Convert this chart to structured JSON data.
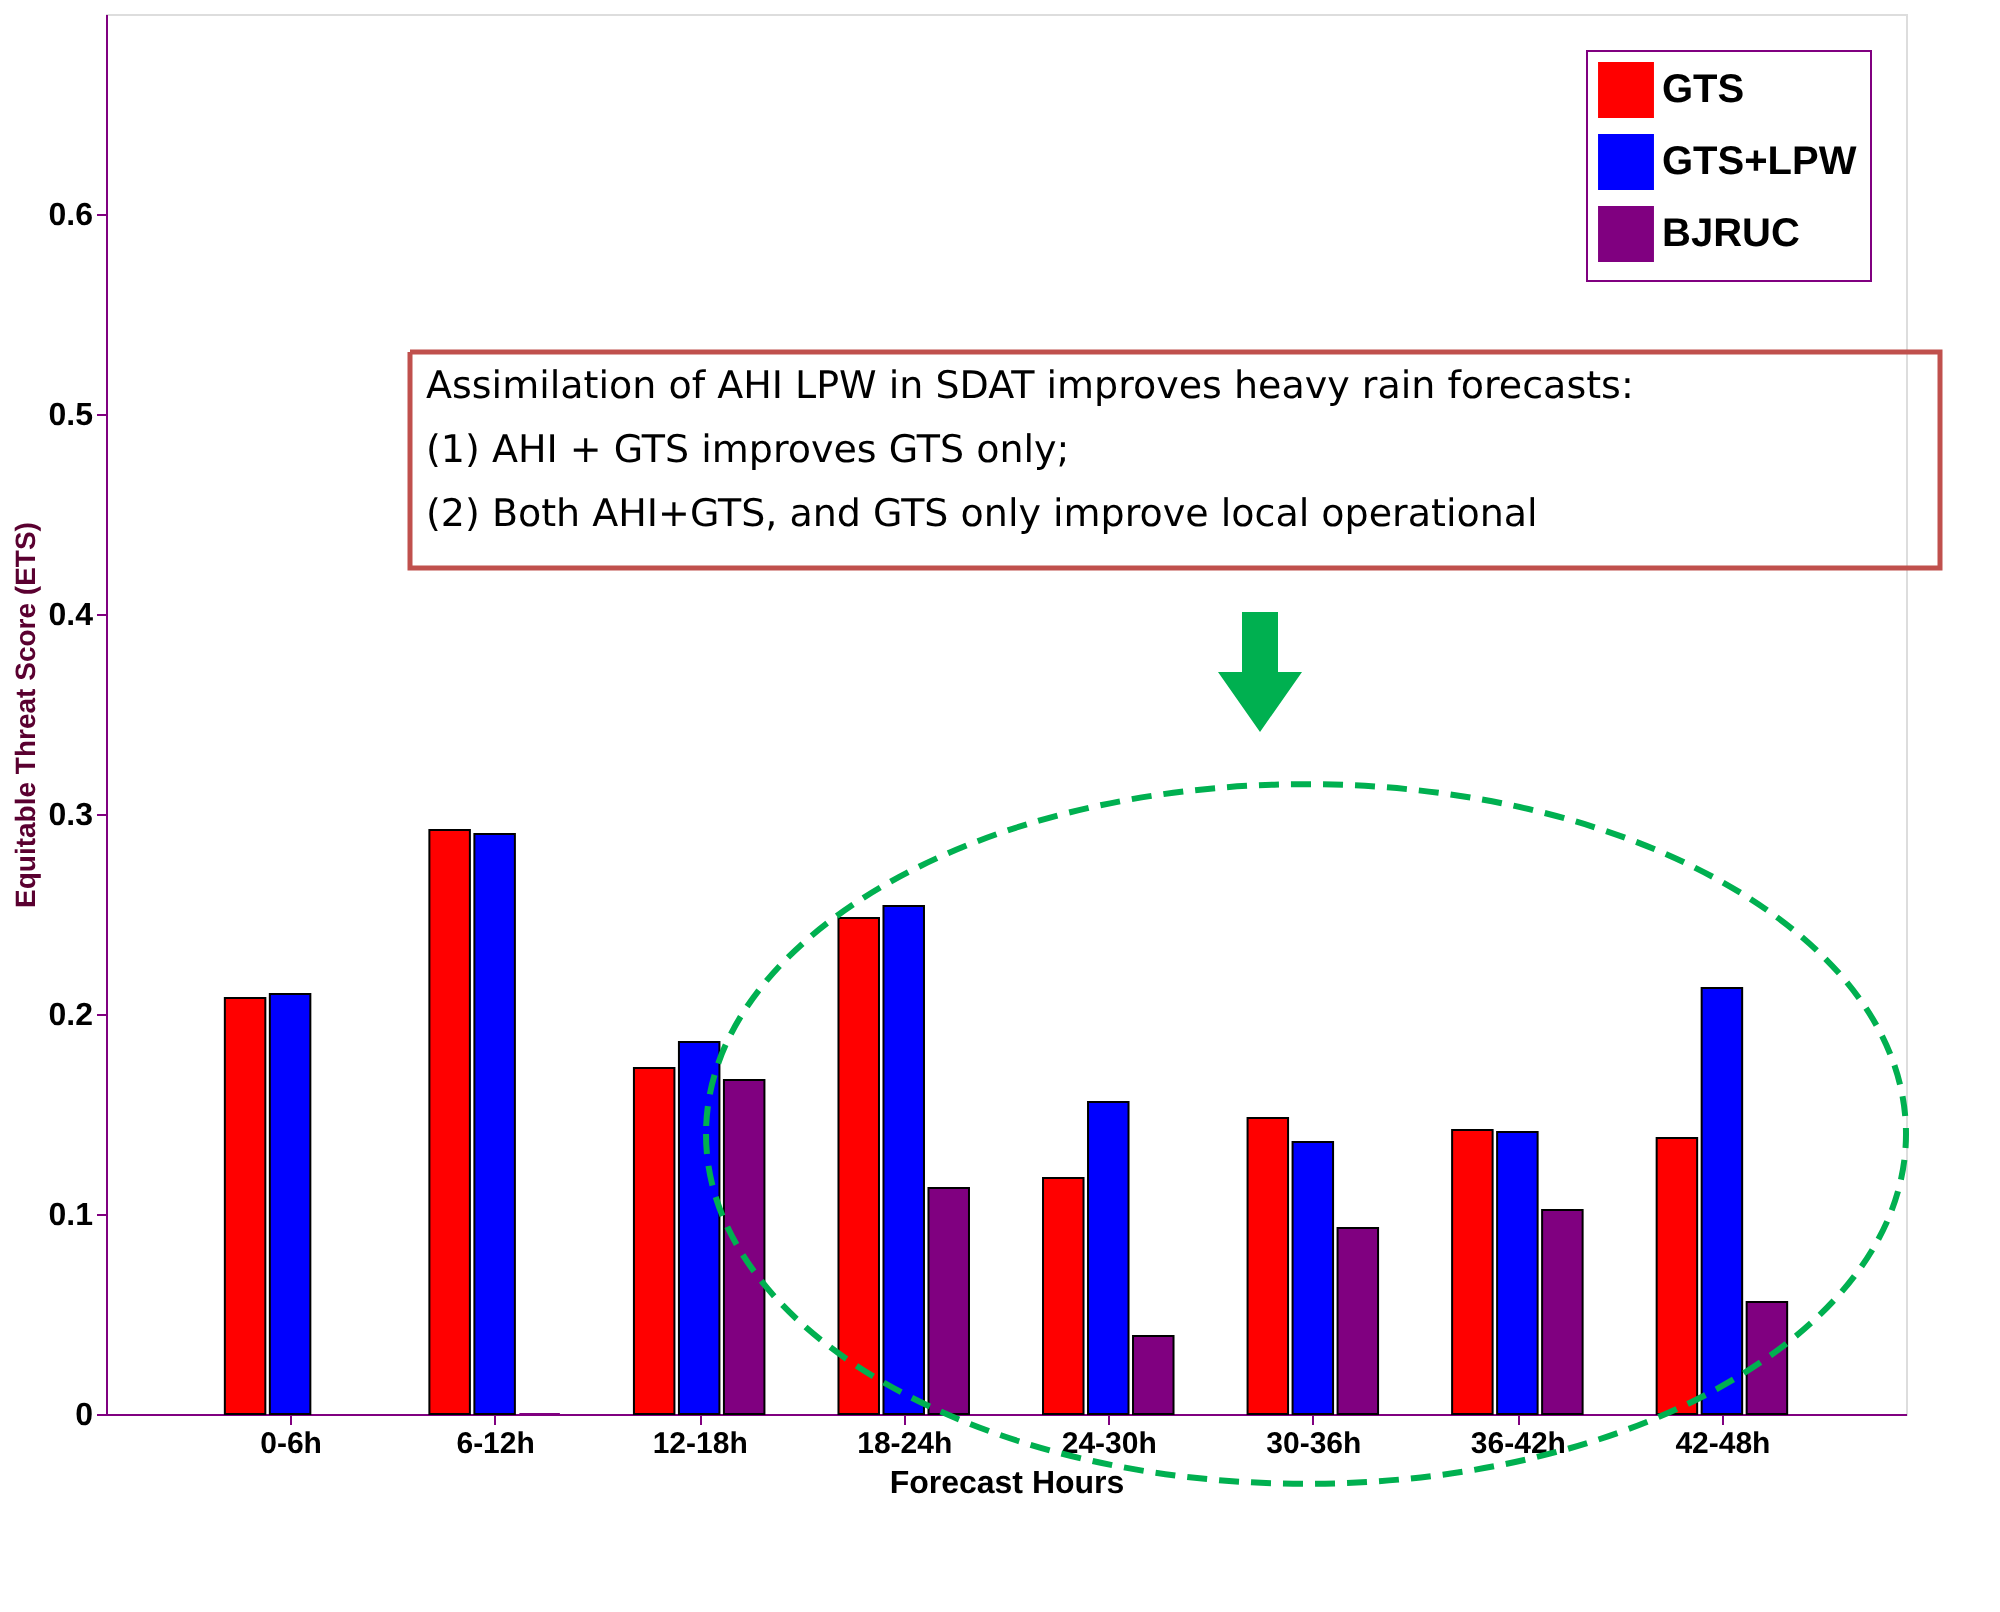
{
  "chart_data": {
    "type": "bar",
    "xlabel": "Forecast Hours",
    "ylabel": "Equitable Threat Score (ETS)",
    "categories": [
      "0-6h",
      "6-12h",
      "12-18h",
      "18-24h",
      "24-30h",
      "30-36h",
      "36-42h",
      "42-48h"
    ],
    "series": [
      {
        "name": "GTS",
        "color": "#ff0000",
        "values": [
          0.208,
          0.292,
          0.173,
          0.248,
          0.118,
          0.148,
          0.142,
          0.138
        ]
      },
      {
        "name": "GTS+LPW",
        "color": "#0000ff",
        "values": [
          0.21,
          0.29,
          0.186,
          0.254,
          0.156,
          0.136,
          0.141,
          0.213
        ]
      },
      {
        "name": "BJRUC",
        "color": "#800080",
        "values": [
          null,
          0,
          0.167,
          0.113,
          0.039,
          0.093,
          0.102,
          0.056
        ]
      }
    ],
    "ylim": [
      0,
      0.7
    ],
    "yticks": [
      0,
      0.1,
      0.2,
      0.3,
      0.4,
      0.5,
      0.6
    ],
    "grid": false,
    "legend": "top right",
    "annotations": [
      "Assimilation of AHI LPW in SDAT improves heavy rain forecasts:",
      "(1)  AHI + GTS improves GTS only;",
      "(2)  Both AHI+GTS, and GTS only improve local operational"
    ]
  }
}
